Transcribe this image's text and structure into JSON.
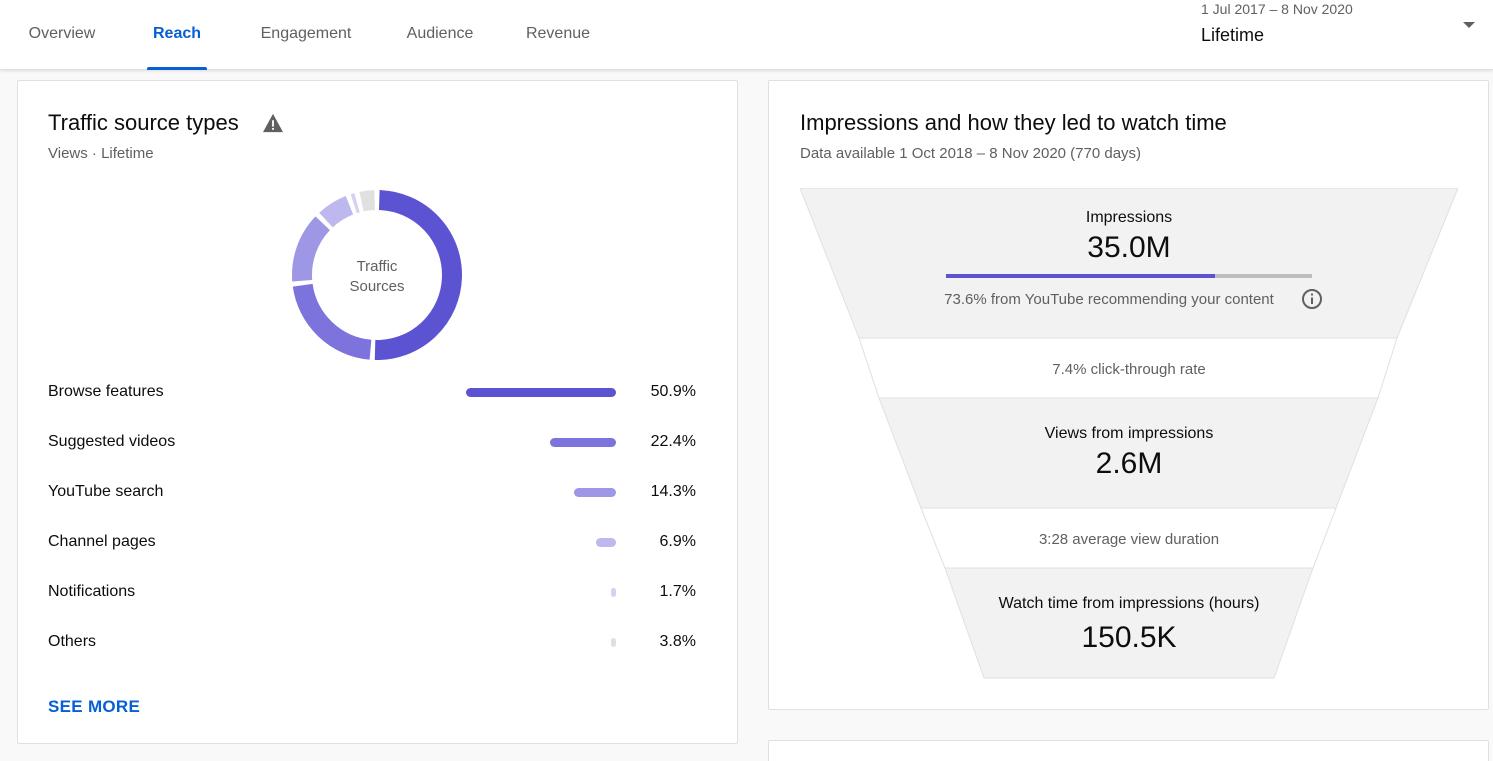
{
  "tabs": [
    {
      "label": "Overview",
      "active": false
    },
    {
      "label": "Reach",
      "active": true
    },
    {
      "label": "Engagement",
      "active": false
    },
    {
      "label": "Audience",
      "active": false
    },
    {
      "label": "Revenue",
      "active": false
    }
  ],
  "date_selector": {
    "range": "1 Jul 2017 – 8 Nov 2020",
    "value": "Lifetime"
  },
  "traffic": {
    "title": "Traffic source types",
    "subtitle": "Views · Lifetime",
    "donut_center": [
      "Traffic",
      "Sources"
    ],
    "sources": [
      {
        "label": "Browse features",
        "percent": "50.9%",
        "value": 50.9,
        "color": "#5c53d3"
      },
      {
        "label": "Suggested videos",
        "percent": "22.4%",
        "value": 22.4,
        "color": "#7c73dc"
      },
      {
        "label": "YouTube search",
        "percent": "14.3%",
        "value": 14.3,
        "color": "#9d97e6"
      },
      {
        "label": "Channel pages",
        "percent": "6.9%",
        "value": 6.9,
        "color": "#bdb9ef"
      },
      {
        "label": "Notifications",
        "percent": "1.7%",
        "value": 1.7,
        "color": "#d4d2f3"
      },
      {
        "label": "Others",
        "percent": "3.8%",
        "value": 3.8,
        "color": "#e0e0e0"
      }
    ],
    "see_more": "SEE MORE"
  },
  "impressions": {
    "title": "Impressions and how they led to watch time",
    "subtitle": "Data available 1 Oct 2018 – 8 Nov 2020 (770 days)",
    "impressions_label": "Impressions",
    "impressions_value": "35.0M",
    "recommended_note": "73.6% from YouTube recommending your content",
    "recommended_fraction": 0.736,
    "ctr": "7.4% click-through rate",
    "views_label": "Views from impressions",
    "views_value": "2.6M",
    "avg_duration": "3:28 average view duration",
    "watch_label": "Watch time from impressions (hours)",
    "watch_value": "150.5K"
  },
  "colors": {
    "accent": "#065fd4",
    "primary_series": "#5c53d3",
    "funnel_fill": "#f2f2f2"
  }
}
